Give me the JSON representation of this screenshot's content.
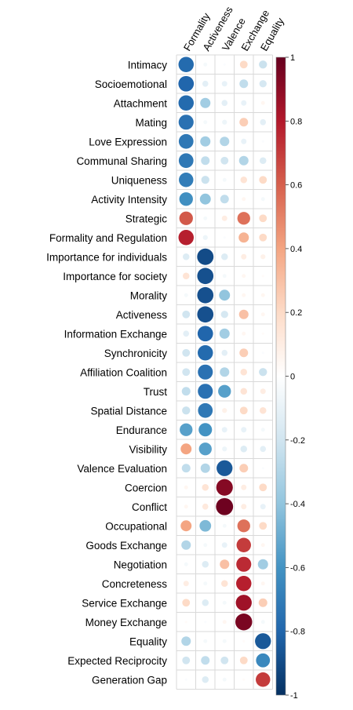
{
  "chart_data": {
    "type": "heatmap",
    "subtype": "correlation-circle-plot",
    "columns": [
      "Formality",
      "Activeness",
      "Valence",
      "Exchange",
      "Equality"
    ],
    "rows": [
      "Intimacy",
      "Socioemotional",
      "Attachment",
      "Mating",
      "Love Expression",
      "Communal Sharing",
      "Uniqueness",
      "Activity Intensity",
      "Strategic",
      "Formality and Regulation",
      "Importance for individuals",
      "Importance for society",
      "Morality",
      "Activeness",
      "Information Exchange",
      "Synchronicity",
      "Affiliation Coalition",
      "Trust",
      "Spatial Distance",
      "Endurance",
      "Visibility",
      "Valence Evaluation",
      "Coercion",
      "Conflict",
      "Occupational",
      "Goods Exchange",
      "Negotiation",
      "Concreteness",
      "Service Exchange",
      "Money Exchange",
      "Equality",
      "Expected Reciprocity",
      "Generation Gap"
    ],
    "values": [
      [
        -0.78,
        -0.05,
        -0.02,
        0.2,
        -0.22
      ],
      [
        -0.8,
        -0.12,
        -0.1,
        -0.25,
        -0.18
      ],
      [
        -0.78,
        -0.35,
        -0.12,
        -0.1,
        0.05
      ],
      [
        -0.75,
        -0.05,
        -0.08,
        0.25,
        -0.12
      ],
      [
        -0.72,
        -0.35,
        -0.3,
        -0.1,
        -0.02
      ],
      [
        -0.72,
        -0.25,
        -0.2,
        -0.3,
        -0.15
      ],
      [
        -0.7,
        -0.22,
        -0.05,
        0.15,
        0.2
      ],
      [
        -0.62,
        -0.4,
        -0.25,
        0.05,
        -0.05
      ],
      [
        0.62,
        -0.05,
        0.1,
        0.55,
        0.2
      ],
      [
        0.78,
        -0.08,
        -0.02,
        0.35,
        0.2
      ],
      [
        -0.15,
        -0.9,
        -0.15,
        0.1,
        0.08
      ],
      [
        0.15,
        -0.88,
        -0.05,
        0.05,
        0.02
      ],
      [
        -0.05,
        -0.88,
        -0.4,
        0.05,
        0.05
      ],
      [
        -0.2,
        -0.88,
        -0.18,
        0.3,
        0.05
      ],
      [
        -0.12,
        -0.8,
        -0.35,
        0.05,
        0.02
      ],
      [
        -0.2,
        -0.78,
        -0.12,
        0.25,
        -0.02
      ],
      [
        -0.2,
        -0.75,
        -0.3,
        0.15,
        -0.22
      ],
      [
        -0.25,
        -0.75,
        -0.55,
        0.15,
        0.1
      ],
      [
        -0.22,
        -0.72,
        0.08,
        0.2,
        0.15
      ],
      [
        -0.55,
        -0.6,
        -0.1,
        -0.1,
        -0.05
      ],
      [
        0.4,
        -0.55,
        -0.08,
        -0.15,
        -0.12
      ],
      [
        -0.25,
        -0.3,
        -0.85,
        0.25,
        -0.02
      ],
      [
        0.05,
        0.15,
        0.92,
        0.1,
        0.2
      ],
      [
        0.05,
        0.12,
        0.98,
        0.1,
        -0.1
      ],
      [
        0.4,
        -0.45,
        -0.05,
        0.55,
        0.2
      ],
      [
        -0.3,
        -0.05,
        -0.1,
        0.7,
        0.05
      ],
      [
        -0.05,
        -0.15,
        0.3,
        0.75,
        -0.35
      ],
      [
        0.1,
        -0.05,
        0.15,
        0.78,
        0.05
      ],
      [
        0.2,
        -0.15,
        -0.05,
        0.85,
        0.25
      ],
      [
        0.02,
        -0.02,
        0.05,
        0.95,
        -0.05
      ],
      [
        -0.3,
        -0.05,
        -0.05,
        0.02,
        -0.85
      ],
      [
        -0.2,
        -0.25,
        -0.2,
        0.2,
        -0.65
      ],
      [
        -0.02,
        -0.15,
        -0.05,
        0.02,
        0.7
      ]
    ],
    "colorbar": {
      "range": [
        -1,
        1
      ],
      "ticks": [
        "1",
        "0.8",
        "0.6",
        "0.4",
        "0.2",
        "0",
        "-0.2",
        "-0.4",
        "-0.6",
        "-0.8",
        "-1"
      ],
      "stops": [
        "#053061",
        "#2166AC",
        "#4393C3",
        "#92C5DE",
        "#D1E5F0",
        "#FFFFFF",
        "#FDDBC7",
        "#F4A582",
        "#D6604D",
        "#B2182B",
        "#67001F"
      ]
    },
    "grid": true,
    "legend": "colorbar-right"
  }
}
